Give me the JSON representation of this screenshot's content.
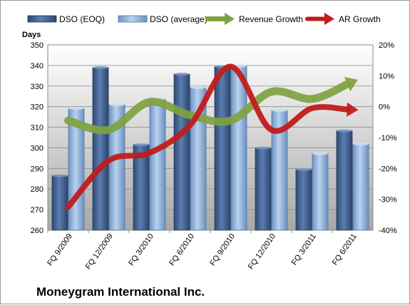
{
  "chart_data": {
    "type": "bar",
    "title": "Moneygram International Inc.",
    "ylabel_left": "Days",
    "ylim_left": [
      260,
      350
    ],
    "yticks_left": [
      260,
      270,
      280,
      290,
      300,
      310,
      320,
      330,
      340,
      350
    ],
    "ylim_right": [
      -40,
      20
    ],
    "yticks_right": [
      "-40%",
      "-30%",
      "-20%",
      "-10%",
      "0%",
      "10%",
      "20%"
    ],
    "yticks_right_values": [
      -40,
      -30,
      -20,
      -10,
      0,
      10,
      20
    ],
    "categories": [
      "FQ 9/2009",
      "FQ 12/2009",
      "FQ 3/2010",
      "FQ 6/2010",
      "FQ 9/2010",
      "FQ 12/2010",
      "FQ 3/2011",
      "FQ 6/2011"
    ],
    "series": [
      {
        "name": "DSO (EOQ)",
        "kind": "bar",
        "axis": "left",
        "color": "#4a6a96",
        "values": [
          286.5,
          339,
          301.5,
          335.8,
          339.5,
          300,
          289.5,
          308.3
        ]
      },
      {
        "name": "DSO (average)",
        "kind": "bar",
        "axis": "left",
        "color": "#8fb2dc",
        "values": [
          319.2,
          321,
          323.8,
          329.3,
          339.8,
          318.2,
          297.2,
          301.8
        ]
      },
      {
        "name": "Revenue Growth",
        "kind": "line",
        "axis": "right",
        "color": "#7fa23f",
        "values": [
          -4.5,
          -7.5,
          1.5,
          -2.8,
          -4.5,
          4.8,
          2.5,
          8.0
        ]
      },
      {
        "name": "AR Growth",
        "kind": "line",
        "axis": "right",
        "color": "#c21b1b",
        "values": [
          -32.5,
          -17.5,
          -15,
          -6,
          13,
          -7.5,
          -0.5,
          -1.0
        ]
      }
    ],
    "grid": true,
    "legend_position": "top"
  }
}
